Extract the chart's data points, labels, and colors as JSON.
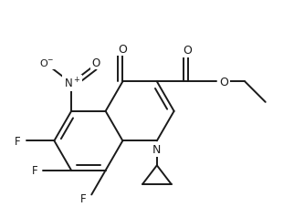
{
  "bg_color": "#ffffff",
  "line_color": "#1a1a1a",
  "line_width": 1.4,
  "font_size": 8.5,
  "fig_width": 3.22,
  "fig_height": 2.28,
  "dpi": 100,
  "xlim": [
    0,
    3.22
  ],
  "ylim": [
    0,
    2.28
  ]
}
